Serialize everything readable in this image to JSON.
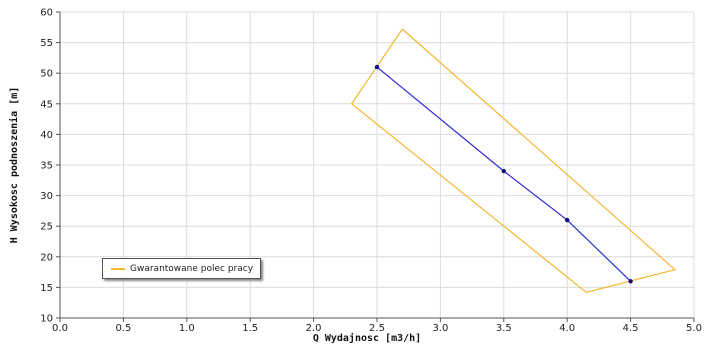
{
  "chart_data": {
    "type": "line",
    "xlabel": "Q Wydajnosc [m3/h]",
    "ylabel": "H Wysokosc podnoszenia [m]",
    "xlim": [
      0,
      5.0
    ],
    "ylim": [
      10,
      60
    ],
    "x_ticks": [
      "0.0",
      "0.5",
      "1.0",
      "1.5",
      "2.0",
      "2.5",
      "3.0",
      "3.5",
      "4.0",
      "4.5",
      "5.0"
    ],
    "y_ticks": [
      "10",
      "15",
      "20",
      "25",
      "30",
      "35",
      "40",
      "45",
      "50",
      "55",
      "60"
    ],
    "grid": true,
    "legend_position": "bottom-left",
    "series": [
      {
        "name": "Gwarantowane polec pracy",
        "color": "#f4b731",
        "closed": true,
        "x": [
          2.7,
          4.85,
          4.15,
          2.3,
          2.7
        ],
        "y": [
          57.2,
          17.9,
          14.2,
          45.0,
          57.2
        ]
      },
      {
        "color": "#2b2bd6",
        "marker_color": "#10107a",
        "markers": true,
        "x": [
          2.5,
          3.5,
          4.0,
          4.5
        ],
        "y": [
          51.0,
          34.0,
          26.0,
          16.0
        ]
      }
    ]
  }
}
